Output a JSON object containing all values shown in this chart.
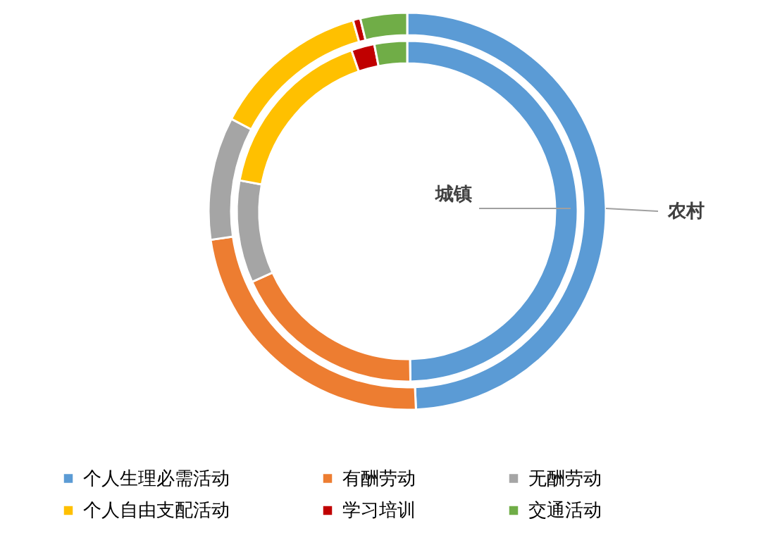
{
  "chart_data": {
    "type": "donut",
    "categories": [
      "个人生理必需活动",
      "有酬劳动",
      "无酬劳动",
      "个人自由支配活动",
      "学习培训",
      "交通活动"
    ],
    "colors": [
      "#5b9bd5",
      "#ed7d31",
      "#a5a5a5",
      "#ffc000",
      "#c00000",
      "#70ad47"
    ],
    "series": [
      {
        "name": "城镇",
        "values": [
          49.7,
          18.5,
          9.7,
          16.8,
          2.2,
          3.1
        ]
      },
      {
        "name": "农村",
        "values": [
          49.3,
          23.4,
          10.0,
          12.9,
          0.6,
          3.8
        ]
      }
    ],
    "legend": "bottom"
  }
}
